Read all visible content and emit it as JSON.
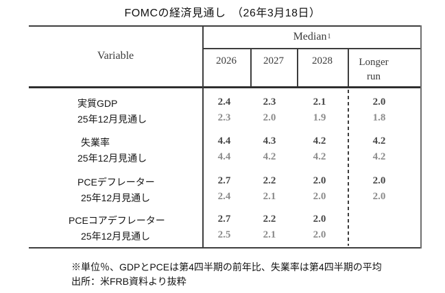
{
  "title": "FOMCの経済見通し　（26年3月18日）",
  "chart_data": {
    "type": "table",
    "title": "FOMCの経済見通し　（26年3月18日）",
    "row_header": "Variable",
    "column_group_header": "Median",
    "column_group_superscript": "1",
    "columns": [
      "2026",
      "2027",
      "2028",
      "Longer run"
    ],
    "rows": [
      {
        "label": "実質GDP",
        "style": "current",
        "values": [
          "2.4",
          "2.3",
          "2.1",
          "2.0"
        ]
      },
      {
        "label": "25年12月見通し",
        "style": "previous",
        "values": [
          "2.3",
          "2.0",
          "1.9",
          "1.8"
        ]
      },
      {
        "label": "失業率",
        "style": "current",
        "values": [
          "4.4",
          "4.3",
          "4.2",
          "4.2"
        ]
      },
      {
        "label": "25年12月見通し",
        "style": "previous",
        "values": [
          "4.4",
          "4.2",
          "4.2",
          "4.2"
        ]
      },
      {
        "label": "PCEデフレーター",
        "style": "current",
        "values": [
          "2.7",
          "2.2",
          "2.0",
          "2.0"
        ]
      },
      {
        "label": "25年12月見通し",
        "style": "previous",
        "values": [
          "2.4",
          "2.1",
          "2.0",
          "2.0"
        ]
      },
      {
        "label": "PCEコアデフレーター",
        "style": "current",
        "values": [
          "2.7",
          "2.2",
          "2.0",
          ""
        ]
      },
      {
        "label": "25年12月見通し",
        "style": "previous",
        "values": [
          "2.5",
          "2.1",
          "2.0",
          ""
        ]
      }
    ],
    "notes": [
      "※単位％、GDPとPCEは第4四半期の前年比、失業率は第4四半期の平均",
      "出所：米FRB資料より抜粋"
    ],
    "colors": {
      "current_value": "#474747",
      "previous_value": "#8b8b8b",
      "line": "#3c3c3c",
      "text": "#111111"
    }
  }
}
